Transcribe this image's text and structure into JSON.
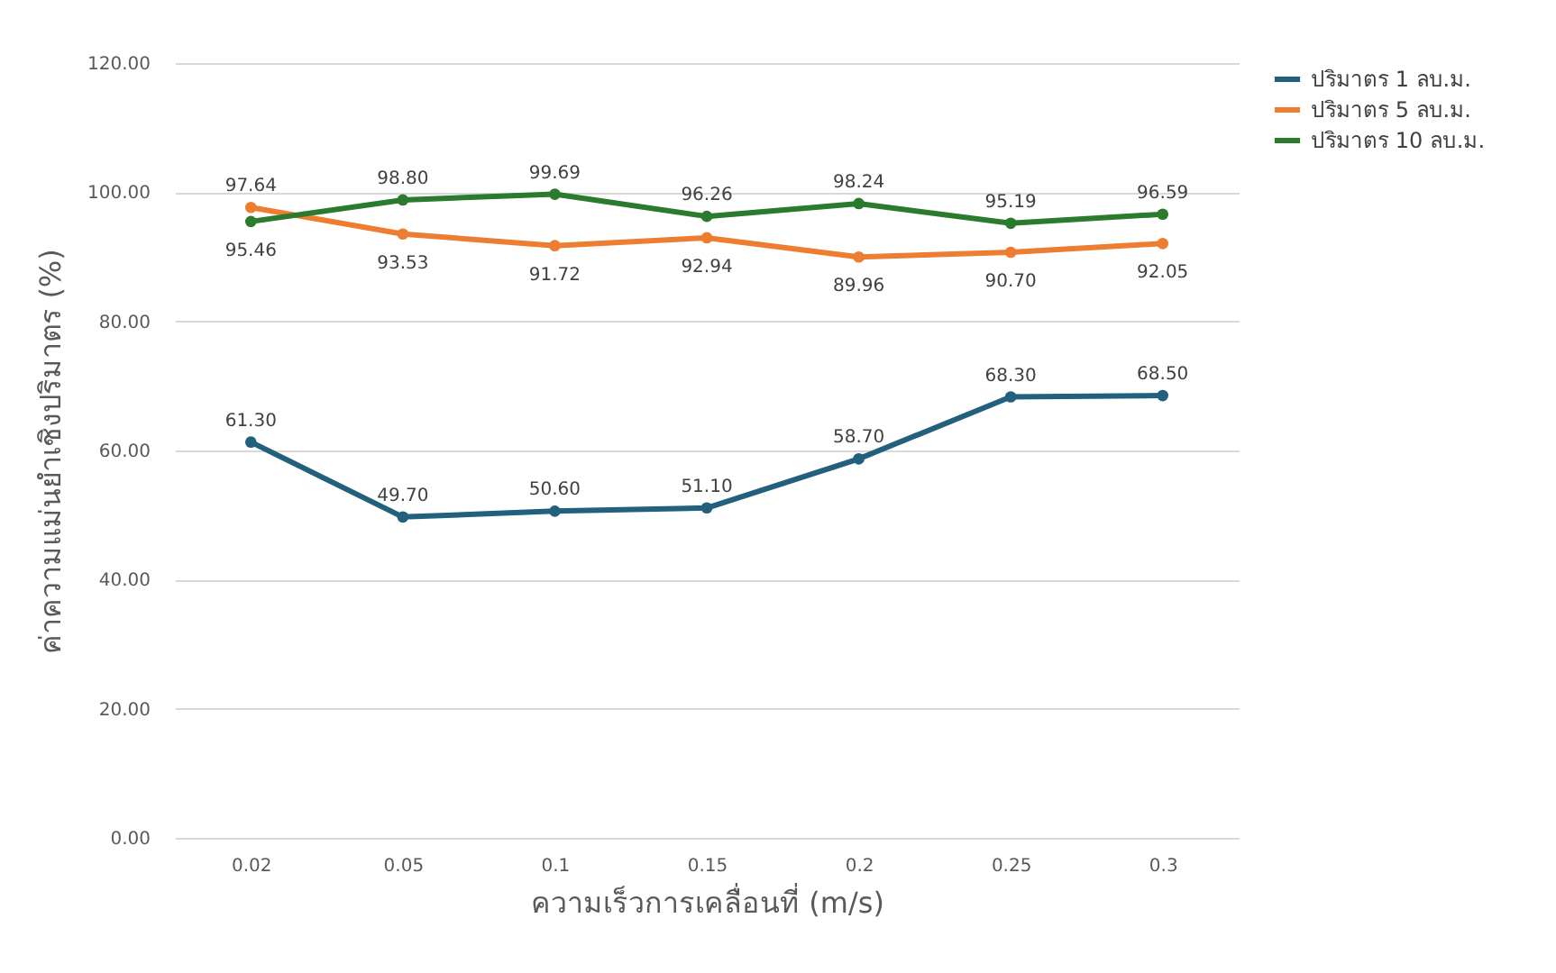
{
  "chart_data": {
    "type": "line",
    "xlabel": "ความเร็วการเคลื่อนที่ (m/s)",
    "ylabel": "ค่าความแม่นยำเชิงปริมาตร (%)",
    "categories": [
      "0.02",
      "0.05",
      "0.1",
      "0.15",
      "0.2",
      "0.25",
      "0.3"
    ],
    "ylim": [
      0,
      120
    ],
    "yticks": [
      {
        "value": 0,
        "label": "0.00"
      },
      {
        "value": 20,
        "label": "20.00"
      },
      {
        "value": 40,
        "label": "40.00"
      },
      {
        "value": 60,
        "label": "60.00"
      },
      {
        "value": 80,
        "label": "80.00"
      },
      {
        "value": 100,
        "label": "100.00"
      },
      {
        "value": 120,
        "label": "120.00"
      }
    ],
    "grid": "y",
    "legend": "right",
    "marker": "circle",
    "line_style": "solid",
    "series": [
      {
        "name": "ปริมาตร 1 ลบ.ม.",
        "color": "#22607e",
        "values": [
          61.3,
          49.7,
          50.6,
          51.1,
          58.7,
          68.3,
          68.5
        ],
        "value_labels": [
          "61.30",
          "49.70",
          "50.60",
          "51.10",
          "58.70",
          "68.30",
          "68.50"
        ]
      },
      {
        "name": "ปริมาตร 5 ลบ.ม.",
        "color": "#ed7d31",
        "values": [
          97.64,
          93.53,
          91.72,
          92.94,
          89.96,
          90.7,
          92.05
        ],
        "value_labels": [
          "97.64",
          "93.53",
          "91.72",
          "92.94",
          "89.96",
          "90.70",
          "92.05"
        ]
      },
      {
        "name": "ปริมาตร 10 ลบ.ม.",
        "color": "#2b7a2e",
        "values": [
          95.46,
          98.8,
          99.69,
          96.26,
          98.24,
          95.19,
          96.59
        ],
        "value_labels": [
          "95.46",
          "98.80",
          "99.69",
          "96.26",
          "98.24",
          "95.19",
          "96.59"
        ]
      }
    ]
  }
}
